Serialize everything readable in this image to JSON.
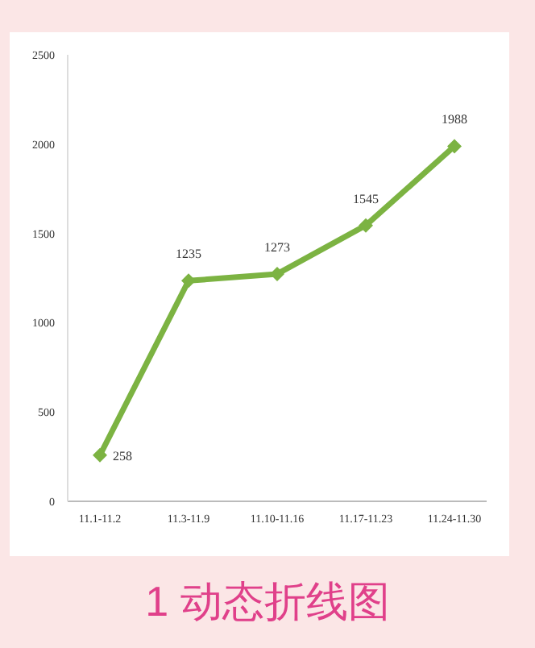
{
  "chart_data": {
    "type": "line",
    "title": "1 动态折线图",
    "categories": [
      "11.1-11.2",
      "11.3-11.9",
      "11.10-11.16",
      "11.17-11.23",
      "11.24-11.30"
    ],
    "values": [
      258,
      1235,
      1273,
      1545,
      1988
    ],
    "color": "#7cb342",
    "ylim": [
      0,
      2500
    ],
    "yticks": [
      0,
      500,
      1000,
      1500,
      2000,
      2500
    ],
    "grid": false,
    "marker": "diamond",
    "line_style": "solid",
    "data_labels": true
  }
}
